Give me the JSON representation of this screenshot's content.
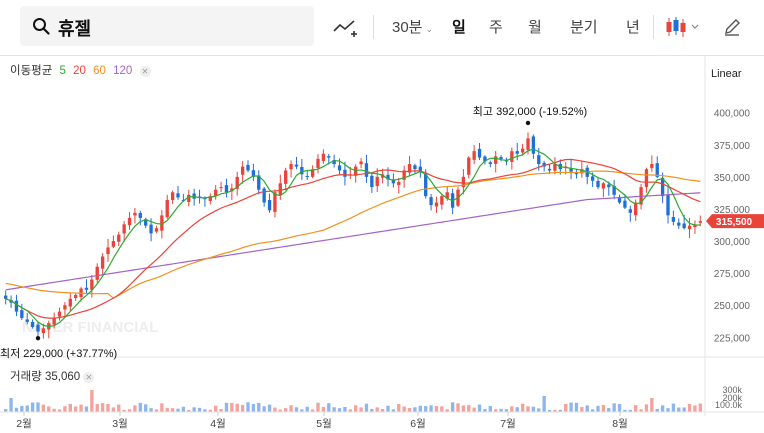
{
  "toolbar": {
    "stock_name": "휴젤",
    "interval_label": "30분",
    "tabs": [
      "일",
      "주",
      "월",
      "분기",
      "년"
    ],
    "active_tab": "일"
  },
  "ma_legend": {
    "label": "이동평균",
    "periods": [
      {
        "value": "5",
        "color": "#2eaa2e"
      },
      {
        "value": "20",
        "color": "#e8443a"
      },
      {
        "value": "60",
        "color": "#f0921e"
      },
      {
        "value": "120",
        "color": "#a463c6"
      }
    ]
  },
  "scale_label": "Linear",
  "volume_legend": {
    "label": "거래량",
    "value": "35,060"
  },
  "watermark": "NAVER FINANCIAL",
  "colors": {
    "up": "#e8443a",
    "down": "#1f6fd8",
    "price_tag": "#e8443a"
  },
  "chart_data": {
    "type": "candlestick",
    "price_axis": {
      "ticks": [
        225000,
        250000,
        275000,
        300000,
        325000,
        350000,
        375000,
        400000
      ],
      "tick_labels": [
        "225,000",
        "250,000",
        "275,000",
        "300,000",
        "325,000",
        "350,000",
        "375,000",
        "400,000"
      ],
      "ylim": [
        212000,
        413000
      ]
    },
    "volume_axis": {
      "tick_labels": [
        "300k",
        "200k",
        "100.0k"
      ]
    },
    "x_labels": [
      "2월",
      "3월",
      "4월",
      "5월",
      "6월",
      "7월",
      "8월"
    ],
    "current_price": {
      "value": 315500,
      "label": "315,500"
    },
    "high": {
      "label": "최고 392,000 (-19.52%)",
      "value": 392000
    },
    "low": {
      "label": "최저 229,000 (+37.77%)",
      "value": 229000
    },
    "close_series": [
      255000,
      252000,
      245000,
      240000,
      237000,
      233000,
      229500,
      232000,
      236000,
      240000,
      245000,
      250000,
      255000,
      258000,
      263000,
      262000,
      270000,
      280000,
      288000,
      295000,
      300000,
      305000,
      313000,
      318000,
      322000,
      318000,
      312000,
      306000,
      310000,
      320000,
      332000,
      338000,
      334000,
      332000,
      336000,
      333000,
      334000,
      333000,
      335000,
      340000,
      342000,
      338000,
      341000,
      350000,
      358000,
      355000,
      350000,
      340000,
      330000,
      324000,
      338000,
      345000,
      355000,
      360000,
      358000,
      352000,
      350000,
      356000,
      364000,
      368000,
      365000,
      360000,
      355000,
      350000,
      352000,
      358000,
      362000,
      350000,
      342000,
      350000,
      352000,
      348000,
      345000,
      346000,
      355000,
      360000,
      356000,
      354000,
      335000,
      328000,
      330000,
      335000,
      338000,
      326000,
      340000,
      350000,
      365000,
      370000,
      365000,
      362000,
      360000,
      366000,
      364000,
      362000,
      370000,
      368000,
      372000,
      380000,
      368000,
      360000,
      358000,
      355000,
      360000,
      356000,
      358000,
      354000,
      352000,
      356000,
      350000,
      347000,
      342000,
      345000,
      342000,
      336000,
      330000,
      326000,
      322000,
      330000,
      342000,
      356000,
      360000,
      350000,
      335000,
      320000,
      315000,
      312000,
      310000,
      312000,
      313000,
      315500
    ],
    "ma5_color": "#2eaa2e",
    "ma20_color": "#e8443a",
    "ma60_color": "#f0921e",
    "ma120_color": "#a463c6",
    "xlabel": "",
    "ylabel": ""
  }
}
